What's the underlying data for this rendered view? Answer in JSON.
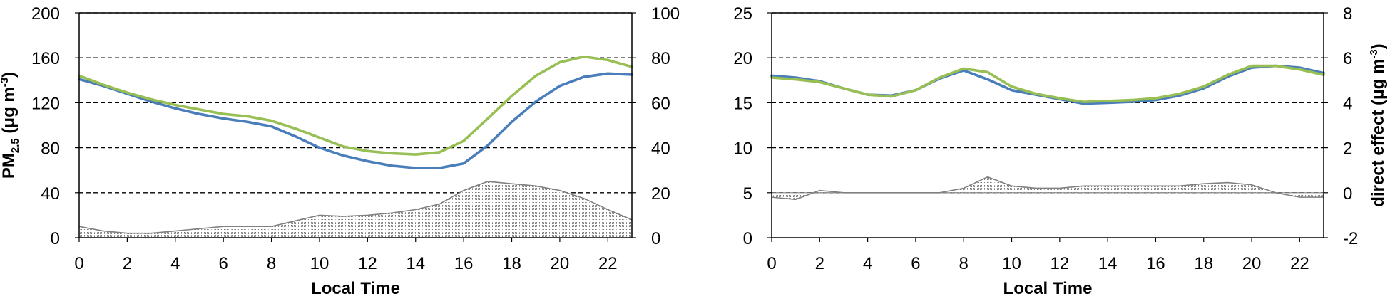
{
  "chart_data": [
    {
      "type": "line",
      "x": [
        0,
        1,
        2,
        3,
        4,
        5,
        6,
        7,
        8,
        9,
        10,
        11,
        12,
        13,
        14,
        15,
        16,
        17,
        18,
        19,
        20,
        21,
        22,
        23
      ],
      "xlim": [
        0,
        23
      ],
      "xticks": [
        0,
        2,
        4,
        6,
        8,
        10,
        12,
        14,
        16,
        18,
        20,
        22
      ],
      "xlabel": "Local Time",
      "ylabel_parts": [
        "PM",
        "2.5",
        " (μg m",
        "-3",
        ")"
      ],
      "ylim": [
        0,
        200
      ],
      "yticks": [
        0,
        40,
        80,
        120,
        160,
        200
      ],
      "y2label_parts": [],
      "y2lim": [
        0,
        100
      ],
      "y2ticks": [
        0,
        20,
        40,
        60,
        80,
        100
      ],
      "grid": "dashed horizontal",
      "series": [
        {
          "axis": "left",
          "color": "#4a7ebb",
          "values": [
            141,
            135,
            128,
            121,
            115,
            110,
            106,
            103,
            99,
            90,
            80,
            73,
            68,
            64,
            62,
            62,
            66,
            82,
            103,
            121,
            135,
            143,
            146,
            145
          ]
        },
        {
          "axis": "left",
          "color": "#98bf54",
          "values": [
            144,
            136,
            129,
            123,
            118,
            114,
            110,
            108,
            104,
            97,
            89,
            81,
            77,
            75,
            74,
            76,
            86,
            106,
            126,
            144,
            156,
            161,
            158,
            152
          ]
        },
        {
          "axis": "right",
          "style": "area",
          "color": "#808080",
          "values": [
            5,
            3,
            2,
            2,
            3,
            4,
            5,
            5,
            5,
            7.5,
            10,
            9.5,
            10,
            11,
            12.5,
            15,
            21,
            25,
            24,
            23,
            21,
            17.5,
            12.5,
            8
          ]
        }
      ]
    },
    {
      "type": "line",
      "x": [
        0,
        1,
        2,
        3,
        4,
        5,
        6,
        7,
        8,
        9,
        10,
        11,
        12,
        13,
        14,
        15,
        16,
        17,
        18,
        19,
        20,
        21,
        22,
        23
      ],
      "xlim": [
        0,
        23
      ],
      "xticks": [
        0,
        2,
        4,
        6,
        8,
        10,
        12,
        14,
        16,
        18,
        20,
        22
      ],
      "xlabel": "Local Time",
      "ylabel_parts": [],
      "ylim": [
        0,
        25
      ],
      "yticks": [
        0,
        5,
        10,
        15,
        20,
        25
      ],
      "y2label_parts": [
        "direct effect (μg m",
        "-3",
        ")"
      ],
      "y2lim": [
        -2,
        8
      ],
      "y2ticks": [
        -2,
        0,
        2,
        4,
        6,
        8
      ],
      "grid": "dashed horizontal",
      "series": [
        {
          "axis": "left",
          "color": "#4a7ebb",
          "values": [
            18.0,
            17.8,
            17.4,
            16.6,
            15.9,
            15.8,
            16.4,
            17.7,
            18.6,
            17.6,
            16.4,
            15.9,
            15.4,
            14.9,
            15.0,
            15.1,
            15.3,
            15.8,
            16.6,
            17.9,
            18.9,
            19.1,
            18.9,
            18.3
          ]
        },
        {
          "axis": "left",
          "color": "#98bf54",
          "values": [
            17.8,
            17.6,
            17.3,
            16.6,
            15.9,
            15.7,
            16.4,
            17.8,
            18.8,
            18.4,
            16.8,
            16.0,
            15.5,
            15.1,
            15.2,
            15.3,
            15.5,
            16.0,
            16.8,
            18.1,
            19.1,
            19.1,
            18.7,
            18.1
          ]
        },
        {
          "axis": "right",
          "style": "area",
          "color": "#808080",
          "values": [
            -0.2,
            -0.3,
            0.1,
            0,
            0,
            0,
            0,
            0,
            0.2,
            0.7,
            0.3,
            0.2,
            0.2,
            0.3,
            0.3,
            0.3,
            0.3,
            0.3,
            0.4,
            0.45,
            0.35,
            0.0,
            -0.2,
            -0.2
          ]
        }
      ]
    }
  ]
}
